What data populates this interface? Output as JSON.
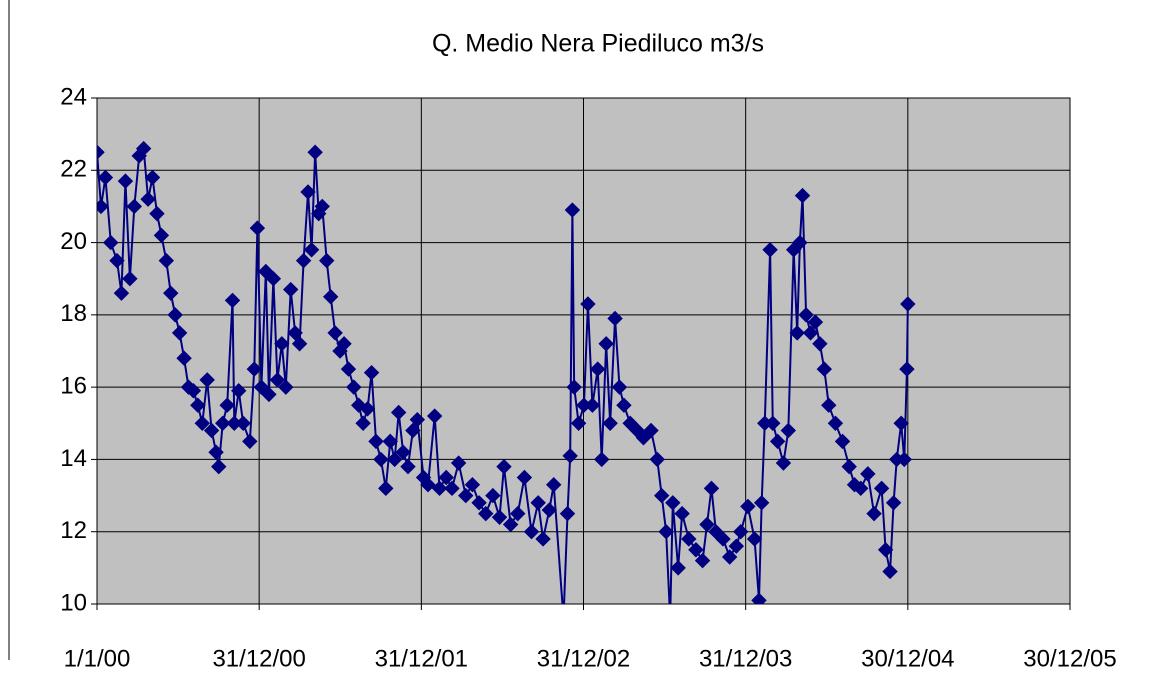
{
  "chart_data": {
    "type": "line",
    "title": "Q. Medio Nera Piediluco m3/s",
    "x": [
      "2000-01-01",
      "2000-01-10",
      "2000-01-20",
      "2000-02-01",
      "2000-02-15",
      "2000-02-25",
      "2000-03-05",
      "2000-03-15",
      "2000-03-25",
      "2000-04-05",
      "2000-04-15",
      "2000-04-25",
      "2000-05-05",
      "2000-05-15",
      "2000-05-25",
      "2000-06-05",
      "2000-06-15",
      "2000-06-25",
      "2000-07-05",
      "2000-07-15",
      "2000-07-25",
      "2000-08-05",
      "2000-08-15",
      "2000-08-25",
      "2000-09-05",
      "2000-09-15",
      "2000-09-25",
      "2000-10-01",
      "2000-10-10",
      "2000-10-20",
      "2000-11-01",
      "2000-11-05",
      "2000-11-15",
      "2000-11-25",
      "2000-12-10",
      "2000-12-20",
      "2000-12-27",
      "2001-01-05",
      "2001-01-15",
      "2001-01-22",
      "2001-02-01",
      "2001-02-10",
      "2001-02-20",
      "2001-03-01",
      "2001-03-12",
      "2001-03-22",
      "2001-04-01",
      "2001-04-10",
      "2001-04-20",
      "2001-04-28",
      "2001-05-06",
      "2001-05-14",
      "2001-05-22",
      "2001-06-01",
      "2001-06-10",
      "2001-06-20",
      "2001-07-01",
      "2001-07-10",
      "2001-07-20",
      "2001-08-01",
      "2001-08-12",
      "2001-08-22",
      "2001-09-01",
      "2001-09-10",
      "2001-09-20",
      "2001-10-01",
      "2001-10-12",
      "2001-10-22",
      "2001-11-01",
      "2001-11-10",
      "2001-11-20",
      "2001-12-01",
      "2001-12-12",
      "2001-12-22",
      "2002-01-05",
      "2002-01-15",
      "2002-01-30",
      "2002-02-10",
      "2002-02-25",
      "2002-03-10",
      "2002-03-25",
      "2002-04-10",
      "2002-04-25",
      "2002-05-10",
      "2002-05-25",
      "2002-06-10",
      "2002-06-25",
      "2002-07-05",
      "2002-07-20",
      "2002-08-05",
      "2002-08-20",
      "2002-09-05",
      "2002-09-20",
      "2002-10-01",
      "2002-10-15",
      "2002-10-25",
      "2002-11-16",
      "2002-11-25",
      "2002-12-01",
      "2002-12-06",
      "2002-12-10",
      "2002-12-20",
      "2003-01-01",
      "2003-01-10",
      "2003-01-20",
      "2003-02-01",
      "2003-02-10",
      "2003-02-20",
      "2003-03-01",
      "2003-03-12",
      "2003-03-22",
      "2003-04-01",
      "2003-04-15",
      "2003-05-01",
      "2003-05-15",
      "2003-06-01",
      "2003-06-15",
      "2003-06-25",
      "2003-07-05",
      "2003-07-14",
      "2003-07-20",
      "2003-08-01",
      "2003-08-10",
      "2003-08-25",
      "2003-09-10",
      "2003-09-25",
      "2003-10-05",
      "2003-10-15",
      "2003-10-25",
      "2003-11-10",
      "2003-11-25",
      "2003-12-10",
      "2003-12-20",
      "2004-01-05",
      "2004-01-20",
      "2004-01-30",
      "2004-02-05",
      "2004-02-12",
      "2004-02-24",
      "2004-03-01",
      "2004-03-12",
      "2004-03-25",
      "2004-04-05",
      "2004-04-17",
      "2004-04-25",
      "2004-05-01",
      "2004-05-07",
      "2004-05-15",
      "2004-05-25",
      "2004-06-05",
      "2004-06-15",
      "2004-06-25",
      "2004-07-05",
      "2004-07-20",
      "2004-08-05",
      "2004-08-20",
      "2004-09-01",
      "2004-09-15",
      "2004-10-01",
      "2004-10-15",
      "2004-11-01",
      "2004-11-10",
      "2004-11-20",
      "2004-11-28",
      "2004-12-05",
      "2004-12-15",
      "2004-12-22",
      "2004-12-28",
      "2004-12-30"
    ],
    "series": [
      {
        "color": "#000080",
        "values": [
          22.5,
          21.0,
          21.8,
          20.0,
          19.5,
          18.6,
          21.7,
          19.0,
          21.0,
          22.4,
          22.6,
          21.2,
          21.8,
          20.8,
          20.2,
          19.5,
          18.6,
          18.0,
          17.5,
          16.8,
          16.0,
          15.9,
          15.5,
          15.0,
          16.2,
          14.8,
          14.2,
          13.8,
          15.0,
          15.5,
          18.4,
          15.0,
          15.9,
          15.0,
          14.5,
          16.5,
          20.4,
          16.0,
          19.2,
          15.8,
          19.0,
          16.2,
          17.2,
          16.0,
          18.7,
          17.5,
          17.2,
          19.5,
          21.4,
          19.8,
          22.5,
          20.8,
          21.0,
          19.5,
          18.5,
          17.5,
          17.0,
          17.2,
          16.5,
          16.0,
          15.5,
          15.0,
          15.4,
          16.4,
          14.5,
          14.0,
          13.2,
          14.5,
          14.0,
          15.3,
          14.2,
          13.8,
          14.8,
          15.1,
          13.5,
          13.3,
          15.2,
          13.2,
          13.5,
          13.2,
          13.9,
          13.0,
          13.3,
          12.8,
          12.5,
          13.0,
          12.4,
          13.8,
          12.2,
          12.5,
          13.5,
          12.0,
          12.8,
          11.8,
          12.6,
          13.3,
          9.6,
          12.5,
          14.1,
          20.9,
          16.0,
          15.0,
          15.5,
          18.3,
          15.5,
          16.5,
          14.0,
          17.2,
          15.0,
          17.9,
          16.0,
          15.5,
          15.0,
          14.8,
          14.6,
          14.8,
          14.0,
          13.0,
          12.0,
          9.6,
          12.8,
          11.0,
          12.5,
          11.8,
          11.5,
          11.2,
          12.2,
          13.2,
          12.0,
          11.8,
          11.3,
          11.6,
          12.0,
          12.7,
          11.8,
          10.1,
          12.8,
          15.0,
          19.8,
          15.0,
          14.5,
          13.9,
          14.8,
          19.8,
          17.5,
          20.0,
          21.3,
          18.0,
          17.5,
          17.8,
          17.2,
          16.5,
          15.5,
          15.0,
          14.5,
          13.8,
          13.3,
          13.2,
          13.6,
          12.5,
          13.2,
          11.5,
          10.9,
          12.8,
          14.0,
          15.0,
          14.0,
          16.5,
          18.3
        ]
      }
    ],
    "xlim": [
      "2000-01-01",
      "2005-12-30"
    ],
    "xticks": [
      {
        "value": "2000-01-01",
        "label": "1/1/00"
      },
      {
        "value": "2000-12-31",
        "label": "31/12/00"
      },
      {
        "value": "2001-12-31",
        "label": "31/12/01"
      },
      {
        "value": "2002-12-31",
        "label": "31/12/02"
      },
      {
        "value": "2003-12-31",
        "label": "31/12/03"
      },
      {
        "value": "2004-12-30",
        "label": "30/12/04"
      },
      {
        "value": "2005-12-30",
        "label": "30/12/05"
      }
    ],
    "ylim": [
      10,
      24
    ],
    "yticks": [
      10,
      12,
      14,
      16,
      18,
      20,
      22,
      24
    ],
    "grid": true
  }
}
